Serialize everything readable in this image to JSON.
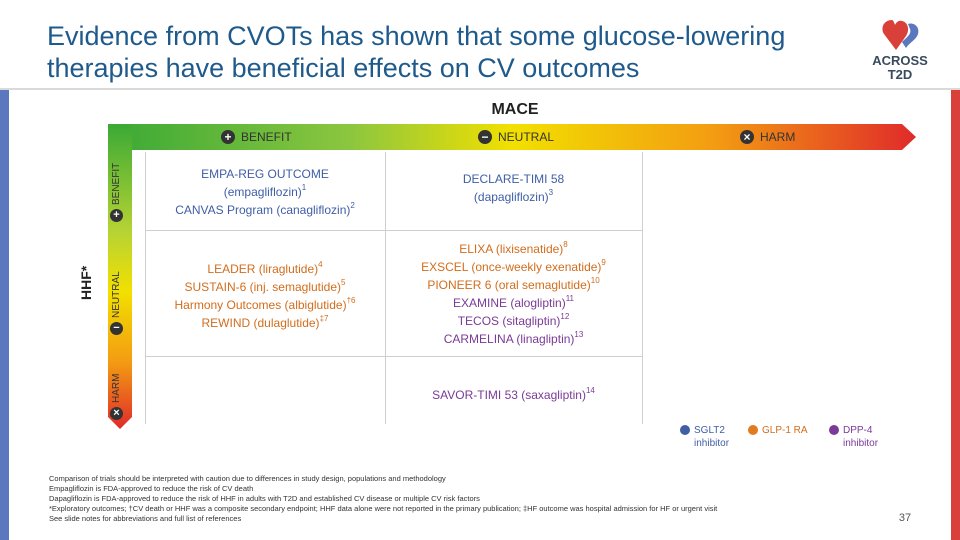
{
  "slide": {
    "title_line1": "Evidence from CVOTs has shown that some glucose-lowering",
    "title_line2": "therapies have beneficial effects on CV outcomes",
    "logo_line1": "ACROSS",
    "logo_line2": "T2D",
    "page_number": "37"
  },
  "axes": {
    "x_title": "MACE",
    "y_title": "HHF*",
    "x_labels": [
      {
        "icon": "+",
        "text": "BENEFIT"
      },
      {
        "icon": "−",
        "text": "NEUTRAL"
      },
      {
        "icon": "×",
        "text": "HARM"
      }
    ],
    "y_labels": [
      {
        "icon": "+",
        "text": "BENEFIT"
      },
      {
        "icon": "−",
        "text": "NEUTRAL"
      },
      {
        "icon": "×",
        "text": "HARM"
      }
    ]
  },
  "cells": {
    "benefit_benefit": [
      {
        "text": "EMPA-REG OUTCOME",
        "sup": ""
      },
      {
        "text": "(empagliflozin)",
        "sup": "1"
      },
      {
        "text": "CANVAS Program (canagliflozin)",
        "sup": "2"
      }
    ],
    "neutral_benefit": [
      {
        "text": "DECLARE-TIMI 58",
        "sup": ""
      },
      {
        "text": "(dapagliflozin)",
        "sup": "3"
      }
    ],
    "benefit_neutral": [
      {
        "text": "LEADER (liraglutide)",
        "sup": "4"
      },
      {
        "text": "SUSTAIN-6 (inj. semaglutide)",
        "sup": "5"
      },
      {
        "text": "Harmony Outcomes (albiglutide)",
        "sup": "†6"
      },
      {
        "text": "REWIND (dulaglutide)",
        "sup": "‡7"
      }
    ],
    "neutral_neutral": [
      {
        "text": "ELIXA (lixisenatide)",
        "sup": "8",
        "color": "orange"
      },
      {
        "text": "EXSCEL (once-weekly exenatide)",
        "sup": "9",
        "color": "orange"
      },
      {
        "text": "PIONEER 6 (oral semaglutide)",
        "sup": "10",
        "color": "orange"
      },
      {
        "text": "EXAMINE (alogliptin)",
        "sup": "11",
        "color": "purple"
      },
      {
        "text": "TECOS (sitagliptin)",
        "sup": "12",
        "color": "purple"
      },
      {
        "text": "CARMELINA (linagliptin)",
        "sup": "13",
        "color": "purple"
      }
    ],
    "neutral_harm": [
      {
        "text": "SAVOR-TIMI 53 (saxagliptin)",
        "sup": "14"
      }
    ]
  },
  "legend": [
    {
      "line1": "SGLT2",
      "line2": "inhibitor",
      "color": "#3f5ea6"
    },
    {
      "line1": "GLP-1 RA",
      "line2": "",
      "color": "#e07b1e"
    },
    {
      "line1": "DPP-4",
      "line2": "inhibitor",
      "color": "#7a3a97"
    }
  ],
  "footnotes": [
    "Comparison of trials should be interpreted with caution due to differences in study design, populations and methodology",
    "Empagliflozin is FDA-approved to reduce the risk of CV death",
    "Dapagliflozin is FDA-approved to reduce the risk of HHF in adults with T2D and established CV disease or multiple CV risk factors",
    "*Exploratory outcomes; †CV death or HHF was a composite secondary endpoint; HHF data alone were not reported in the primary publication; ‡HF outcome was hospital admission for HF or urgent visit",
    "See slide notes for abbreviations and full list of references"
  ],
  "colors": {
    "title": "#1f5a8c",
    "benefit": "#4caf2e",
    "neutral": "#f2d600",
    "harm": "#d9403a",
    "left_bar": "#5b78be"
  }
}
